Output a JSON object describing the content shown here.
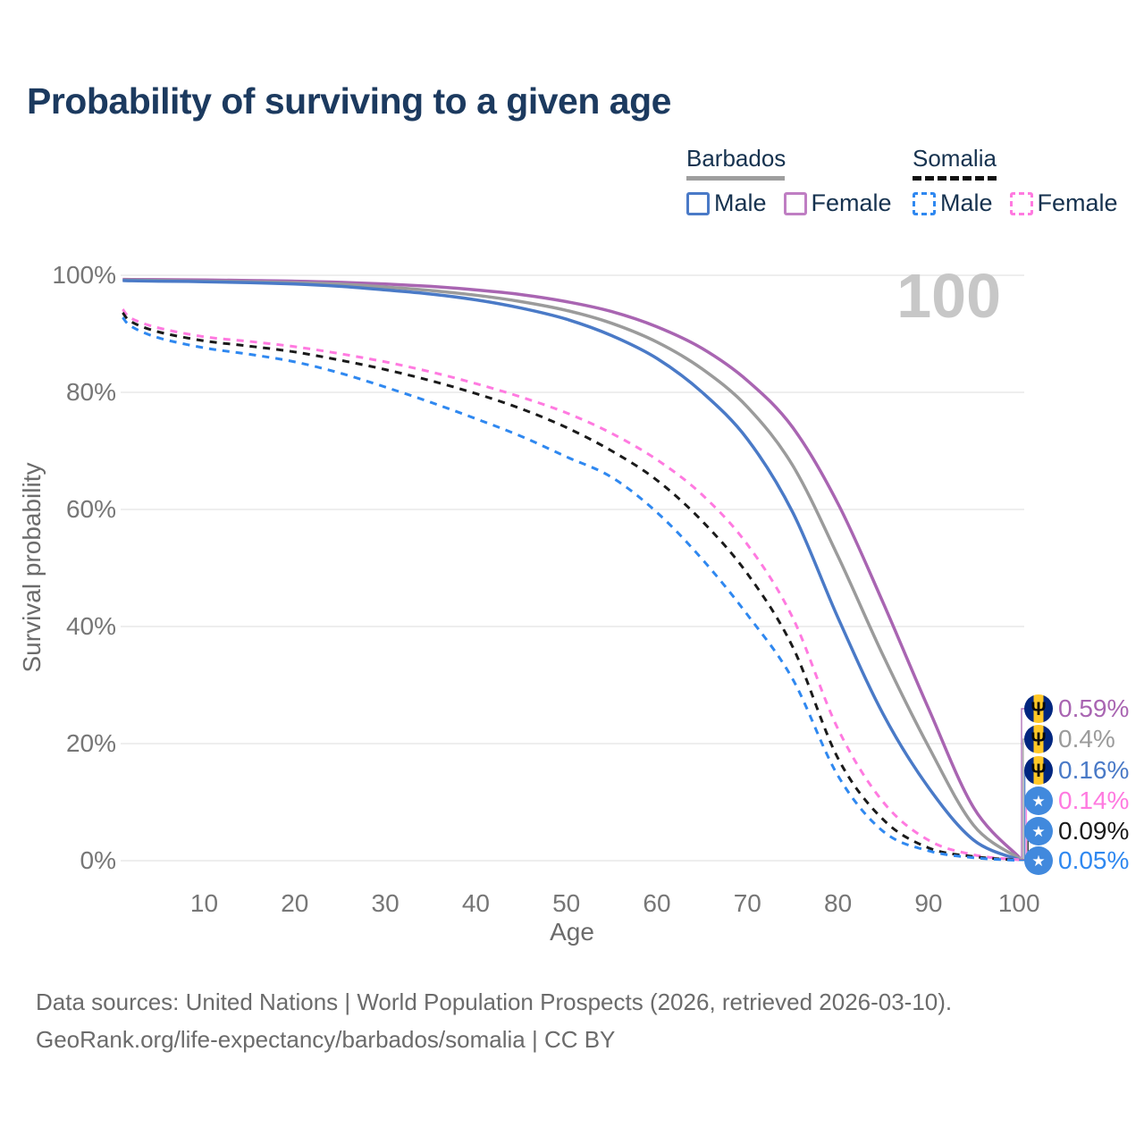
{
  "title": "Probability of surviving to a given age",
  "watermark": "100",
  "legend": {
    "groups": [
      {
        "label": "Barbados",
        "line_style": "solid",
        "underline_color": "#9e9e9e",
        "items": [
          {
            "label": "Male",
            "color": "#4a7ac7",
            "dash": false
          },
          {
            "label": "Female",
            "color": "#bf7ec3",
            "dash": false
          }
        ]
      },
      {
        "label": "Somalia",
        "line_style": "dashed",
        "underline_color": "#111111",
        "items": [
          {
            "label": "Male",
            "color": "#2f88f0",
            "dash": true
          },
          {
            "label": "Female",
            "color": "#ff7ae0",
            "dash": true
          }
        ]
      }
    ]
  },
  "chart_data": {
    "type": "line",
    "title": "Probability of surviving to a given age",
    "xlabel": "Age",
    "ylabel": "Survival probability",
    "xlim": [
      1,
      100
    ],
    "ylim": [
      0,
      100
    ],
    "grid": true,
    "legend_position": "top-right",
    "x_ticks": [
      10,
      20,
      30,
      40,
      50,
      60,
      70,
      80,
      90,
      100
    ],
    "y_ticks": [
      {
        "value": 0,
        "label": "0%"
      },
      {
        "value": 20,
        "label": "20%"
      },
      {
        "value": 40,
        "label": "40%"
      },
      {
        "value": 60,
        "label": "60%"
      },
      {
        "value": 80,
        "label": "80%"
      },
      {
        "value": 100,
        "label": "100%"
      }
    ],
    "ages": [
      1,
      2,
      5,
      10,
      15,
      20,
      25,
      30,
      35,
      40,
      45,
      50,
      55,
      60,
      65,
      70,
      75,
      80,
      85,
      90,
      95,
      100
    ],
    "series": [
      {
        "name": "Barbados Female",
        "country": "Barbados",
        "sex": "Female",
        "color": "#a965b2",
        "dash": false,
        "end_label": "0.59%",
        "values": [
          99.3,
          99.28,
          99.25,
          99.2,
          99.1,
          99.0,
          98.8,
          98.5,
          98.1,
          97.5,
          96.7,
          95.5,
          93.8,
          91.2,
          87.5,
          82.0,
          74.0,
          61.0,
          44.0,
          26.0,
          9.0,
          0.59
        ]
      },
      {
        "name": "Barbados Total",
        "country": "Barbados",
        "sex": "Both",
        "color": "#9b9b9b",
        "dash": false,
        "end_label": "0.4%",
        "values": [
          99.2,
          99.17,
          99.1,
          99.0,
          98.9,
          98.75,
          98.5,
          98.0,
          97.4,
          96.6,
          95.5,
          94.0,
          91.8,
          88.6,
          84.0,
          77.5,
          67.5,
          52.0,
          35.0,
          19.5,
          6.0,
          0.4
        ]
      },
      {
        "name": "Barbados Male",
        "country": "Barbados",
        "sex": "Male",
        "color": "#4a7ac7",
        "dash": false,
        "end_label": "0.16%",
        "values": [
          99.1,
          99.07,
          99.0,
          98.9,
          98.75,
          98.5,
          98.1,
          97.5,
          96.8,
          95.8,
          94.4,
          92.5,
          89.7,
          85.8,
          80.0,
          72.0,
          59.5,
          41.5,
          25.0,
          12.5,
          3.5,
          0.16
        ]
      },
      {
        "name": "Somalia Female",
        "country": "Somalia",
        "sex": "Female",
        "color": "#ff7ae0",
        "dash": true,
        "end_label": "0.14%",
        "values": [
          94.2,
          92.6,
          91.0,
          89.5,
          88.7,
          87.8,
          86.6,
          85.2,
          83.5,
          81.5,
          79.2,
          76.5,
          73.0,
          68.5,
          62.5,
          54.0,
          41.5,
          22.5,
          10.0,
          3.5,
          1.0,
          0.14
        ]
      },
      {
        "name": "Somalia Total",
        "country": "Somalia",
        "sex": "Both",
        "color": "#1a1a1a",
        "dash": true,
        "end_label": "0.09%",
        "values": [
          93.6,
          92.0,
          90.3,
          88.8,
          87.9,
          86.9,
          85.5,
          83.9,
          82.0,
          79.8,
          77.2,
          74.0,
          70.0,
          65.0,
          58.0,
          49.0,
          36.5,
          17.5,
          7.0,
          2.2,
          0.7,
          0.09
        ]
      },
      {
        "name": "Somalia Male",
        "country": "Somalia",
        "sex": "Male",
        "color": "#2f88f0",
        "dash": true,
        "end_label": "0.05%",
        "values": [
          92.8,
          91.2,
          89.3,
          87.6,
          86.5,
          85.2,
          83.3,
          80.9,
          78.3,
          75.5,
          72.5,
          69.0,
          65.5,
          59.5,
          51.5,
          42.0,
          31.0,
          14.5,
          5.0,
          1.7,
          0.5,
          0.05
        ]
      }
    ]
  },
  "icons": {
    "barbados_flag": "trident-circle",
    "somalia_flag": "star-circle",
    "trident_glyph": "Ψ",
    "star_glyph": "★"
  },
  "footer": {
    "line1": "Data sources: United Nations | World Population Prospects (2026, retrieved 2026-03-10).",
    "line2": "GeoRank.org/life-expectancy/barbados/somalia | CC BY"
  }
}
